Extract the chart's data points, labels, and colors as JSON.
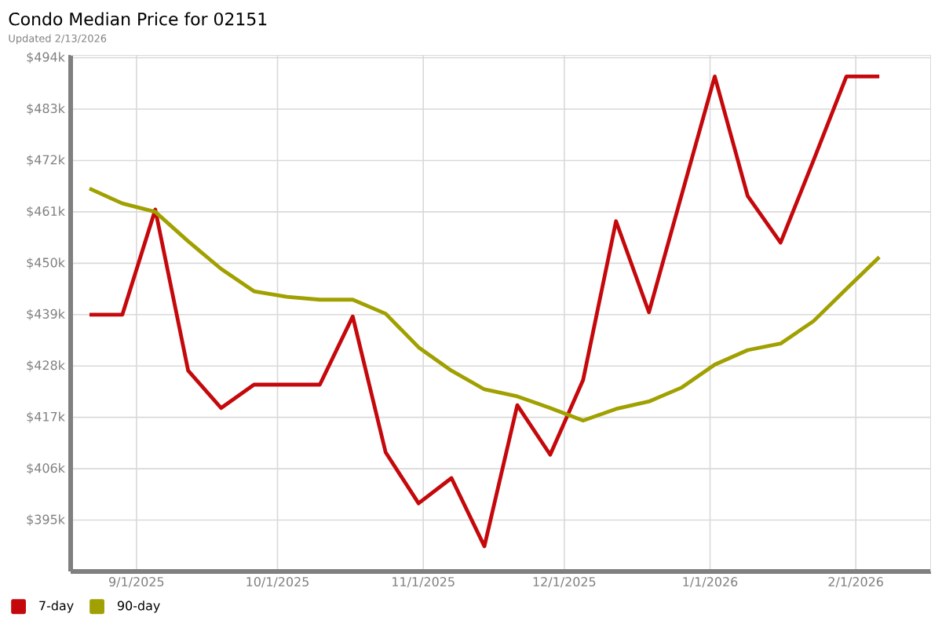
{
  "chart_data": {
    "type": "line",
    "title": "Condo Median Price for 02151",
    "subtitle": "Updated 2/13/2026",
    "x": [
      "2025-08-22",
      "2025-08-29",
      "2025-09-05",
      "2025-09-12",
      "2025-09-19",
      "2025-09-26",
      "2025-10-03",
      "2025-10-10",
      "2025-10-17",
      "2025-10-24",
      "2025-10-31",
      "2025-11-07",
      "2025-11-14",
      "2025-11-21",
      "2025-11-28",
      "2025-12-05",
      "2025-12-12",
      "2025-12-19",
      "2025-12-26",
      "2026-01-02",
      "2026-01-09",
      "2026-01-16",
      "2026-01-23",
      "2026-01-30",
      "2026-02-06"
    ],
    "series": [
      {
        "name": "7-day",
        "color": "#c4080c",
        "values": [
          439,
          439,
          461.5,
          427,
          419,
          424,
          424,
          424,
          438.6,
          409.5,
          398.6,
          404,
          389.4,
          419.6,
          409,
          425,
          459,
          439.5,
          464.8,
          490,
          464.4,
          454.4,
          472,
          490,
          490
        ]
      },
      {
        "name": "90-day",
        "color": "#a0a000",
        "values": [
          466,
          462.8,
          461,
          454.7,
          448.8,
          444,
          442.8,
          442.2,
          442.2,
          439.2,
          432,
          427,
          423,
          421.5,
          419,
          416.3,
          418.8,
          420.4,
          423.4,
          428.3,
          431.4,
          432.8,
          437.6,
          444.5,
          451.3
        ]
      }
    ],
    "xlim": [
      "2025-08-18",
      "2026-02-17"
    ],
    "xticks": [
      {
        "value": "2025-09-01",
        "label": "9/1/2025"
      },
      {
        "value": "2025-10-01",
        "label": "10/1/2025"
      },
      {
        "value": "2025-11-01",
        "label": "11/1/2025"
      },
      {
        "value": "2025-12-01",
        "label": "12/1/2025"
      },
      {
        "value": "2026-01-01",
        "label": "1/1/2026"
      },
      {
        "value": "2026-02-01",
        "label": "2/1/2026"
      }
    ],
    "ylim": [
      384,
      494.6
    ],
    "yticks": [
      {
        "value": 395,
        "label": "$395k"
      },
      {
        "value": 406,
        "label": "$406k"
      },
      {
        "value": 417,
        "label": "$417k"
      },
      {
        "value": 428,
        "label": "$428k"
      },
      {
        "value": 439,
        "label": "$439k"
      },
      {
        "value": 450,
        "label": "$450k"
      },
      {
        "value": 461,
        "label": "$461k"
      },
      {
        "value": 472,
        "label": "$472k"
      },
      {
        "value": 483,
        "label": "$483k"
      },
      {
        "value": 494,
        "label": "$494k"
      }
    ],
    "grid": true,
    "legend": "bottom"
  }
}
